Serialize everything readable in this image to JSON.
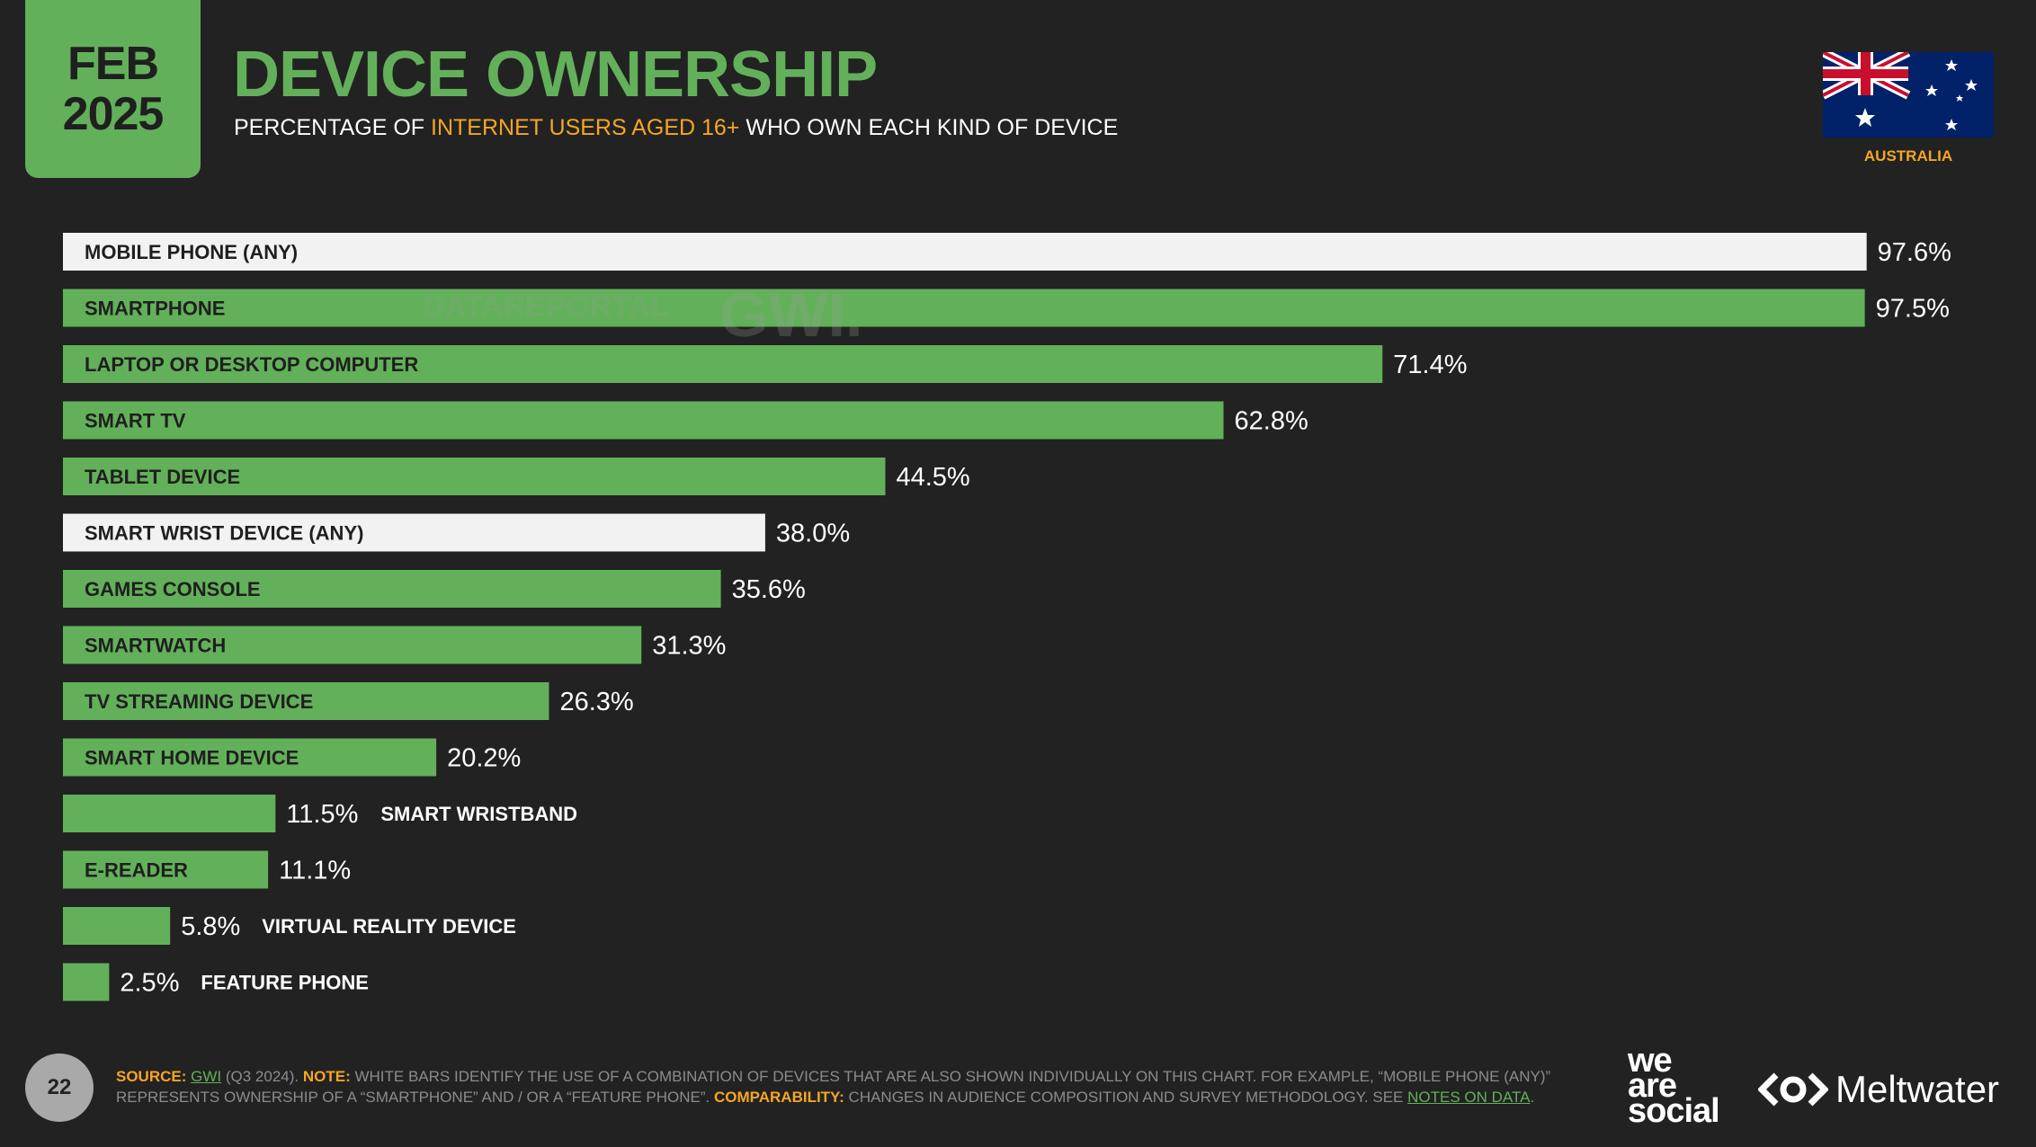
{
  "header": {
    "month": "FEB",
    "year": "2025",
    "title": "DEVICE OWNERSHIP",
    "subtitle_pre": "PERCENTAGE OF ",
    "subtitle_hl": "INTERNET USERS AGED 16+",
    "subtitle_post": " WHO OWN EACH KIND OF DEVICE",
    "country": "AUSTRALIA"
  },
  "watermark": {
    "brand1": "DATAREPORTAL",
    "brand2": "GWI."
  },
  "chart_data": {
    "type": "bar",
    "orientation": "horizontal",
    "categories": [
      "MOBILE PHONE (ANY)",
      "SMARTPHONE",
      "LAPTOP OR DESKTOP COMPUTER",
      "SMART TV",
      "TABLET DEVICE",
      "SMART WRIST DEVICE (ANY)",
      "GAMES CONSOLE",
      "SMARTWATCH",
      "TV STREAMING DEVICE",
      "SMART HOME DEVICE",
      "SMART WRISTBAND",
      "E-READER",
      "VIRTUAL REALITY DEVICE",
      "FEATURE PHONE"
    ],
    "values": [
      97.6,
      97.5,
      71.4,
      62.8,
      44.5,
      38.0,
      35.6,
      31.3,
      26.3,
      20.2,
      11.5,
      11.1,
      5.8,
      2.5
    ],
    "value_labels": [
      "97.6%",
      "97.5%",
      "71.4%",
      "62.8%",
      "44.5%",
      "38.0%",
      "35.6%",
      "31.3%",
      "26.3%",
      "20.2%",
      "11.5%",
      "11.1%",
      "5.8%",
      "2.5%"
    ],
    "highlight": [
      true,
      false,
      false,
      false,
      false,
      true,
      false,
      false,
      false,
      false,
      false,
      false,
      false,
      false
    ],
    "xlim": [
      0,
      100
    ],
    "colors": {
      "default": "#63b05a",
      "highlight": "#f2f2f2"
    }
  },
  "footer": {
    "page": "22",
    "source_key": "SOURCE:",
    "source_name": "GWI",
    "source_rest": " (Q3 2024). ",
    "note_key": "NOTE:",
    "note_text": " WHITE BARS IDENTIFY THE USE OF A COMBINATION OF DEVICES THAT ARE ALSO SHOWN INDIVIDUALLY ON THIS CHART. FOR EXAMPLE, “MOBILE PHONE (ANY)” REPRESENTS OWNERSHIP OF A “SMARTPHONE” AND / OR A “FEATURE PHONE”. ",
    "comp_key": "COMPARABILITY:",
    "comp_text": " CHANGES IN AUDIENCE COMPOSITION AND SURVEY METHODOLOGY. SEE ",
    "link": "NOTES ON DATA",
    "end": "."
  },
  "logos": {
    "was1": "we",
    "was2": "are",
    "was3": "social",
    "meltwater": "Meltwater"
  }
}
